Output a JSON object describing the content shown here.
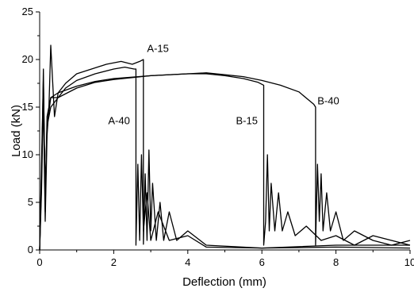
{
  "chart_data": {
    "type": "line",
    "title": "",
    "xlabel": "Deflection (mm)",
    "ylabel": "Load (kN)",
    "xlim": [
      0,
      10
    ],
    "ylim": [
      0,
      25
    ],
    "x_ticks": [
      0,
      2,
      4,
      6,
      8,
      10
    ],
    "y_ticks": [
      0,
      5,
      10,
      15,
      20,
      25
    ],
    "grid": false,
    "legend": "none",
    "line_color": "#000000",
    "series": [
      {
        "points": [
          [
            0,
            0
          ],
          [
            0.05,
            6
          ],
          [
            0.1,
            16
          ],
          [
            0.15,
            3
          ],
          [
            0.2,
            12
          ],
          [
            0.25,
            15
          ],
          [
            0.3,
            21.5
          ],
          [
            0.4,
            14
          ],
          [
            0.5,
            16.5
          ],
          [
            0.7,
            17.5
          ],
          [
            1,
            18.5
          ],
          [
            1.4,
            19
          ],
          [
            1.8,
            19.5
          ],
          [
            2.2,
            19.8
          ],
          [
            2.5,
            19.5
          ],
          [
            2.7,
            19.8
          ],
          [
            2.8,
            20
          ],
          [
            2.8,
            0.6
          ],
          [
            2.85,
            8
          ],
          [
            2.9,
            1
          ],
          [
            2.95,
            10.5
          ],
          [
            3.0,
            2
          ],
          [
            3.05,
            7
          ],
          [
            3.15,
            1
          ],
          [
            3.25,
            5
          ],
          [
            3.35,
            1
          ],
          [
            3.5,
            4
          ],
          [
            3.7,
            1
          ],
          [
            4.0,
            2
          ],
          [
            4.5,
            0.5
          ],
          [
            6,
            0.2
          ],
          [
            8,
            0.5
          ],
          [
            10,
            0.5
          ]
        ]
      },
      {
        "points": [
          [
            0,
            0
          ],
          [
            0.05,
            8
          ],
          [
            0.1,
            17
          ],
          [
            0.15,
            5
          ],
          [
            0.2,
            13
          ],
          [
            0.3,
            16
          ],
          [
            0.5,
            16
          ],
          [
            0.7,
            17
          ],
          [
            1,
            17.8
          ],
          [
            1.5,
            18.5
          ],
          [
            2,
            19
          ],
          [
            2.3,
            19.2
          ],
          [
            2.55,
            19
          ],
          [
            2.6,
            19
          ],
          [
            2.6,
            0.5
          ],
          [
            2.65,
            9
          ],
          [
            2.7,
            1
          ],
          [
            2.75,
            10
          ],
          [
            2.8,
            2
          ],
          [
            2.9,
            6
          ],
          [
            3.0,
            1
          ],
          [
            3.2,
            4
          ],
          [
            3.5,
            1
          ],
          [
            4,
            1.5
          ],
          [
            4.5,
            0.3
          ],
          [
            6,
            0.2
          ],
          [
            8,
            0.3
          ],
          [
            10,
            0.2
          ]
        ]
      },
      {
        "points": [
          [
            0,
            0
          ],
          [
            0.05,
            9
          ],
          [
            0.1,
            18
          ],
          [
            0.15,
            6
          ],
          [
            0.2,
            13
          ],
          [
            0.3,
            15
          ],
          [
            0.5,
            16
          ],
          [
            1,
            17
          ],
          [
            1.5,
            17.6
          ],
          [
            2,
            17.9
          ],
          [
            3,
            18.3
          ],
          [
            4,
            18.5
          ],
          [
            4.5,
            18.5
          ],
          [
            5,
            18.3
          ],
          [
            5.5,
            18
          ],
          [
            5.9,
            17.6
          ],
          [
            6.05,
            17.3
          ],
          [
            6.05,
            0.5
          ],
          [
            6.1,
            3
          ],
          [
            6.15,
            10
          ],
          [
            6.2,
            2
          ],
          [
            6.25,
            7
          ],
          [
            6.35,
            2
          ],
          [
            6.45,
            6
          ],
          [
            6.55,
            2
          ],
          [
            6.7,
            4
          ],
          [
            6.9,
            1.5
          ],
          [
            7.2,
            2.5
          ],
          [
            7.6,
            1
          ],
          [
            8,
            1.5
          ],
          [
            8.5,
            0.5
          ],
          [
            9,
            1.5
          ],
          [
            10,
            0.5
          ]
        ]
      },
      {
        "points": [
          [
            0,
            0
          ],
          [
            0.05,
            7
          ],
          [
            0.1,
            19
          ],
          [
            0.15,
            4
          ],
          [
            0.2,
            14
          ],
          [
            0.3,
            16
          ],
          [
            0.5,
            16.5
          ],
          [
            1,
            17.2
          ],
          [
            1.5,
            17.7
          ],
          [
            2,
            18
          ],
          [
            3,
            18.3
          ],
          [
            4,
            18.5
          ],
          [
            4.5,
            18.6
          ],
          [
            5,
            18.4
          ],
          [
            5.5,
            18.2
          ],
          [
            6,
            17.8
          ],
          [
            6.5,
            17.3
          ],
          [
            7,
            16.6
          ],
          [
            7.4,
            15.3
          ],
          [
            7.45,
            15
          ],
          [
            7.45,
            0.5
          ],
          [
            7.5,
            9
          ],
          [
            7.55,
            3
          ],
          [
            7.6,
            8
          ],
          [
            7.65,
            2
          ],
          [
            7.75,
            6
          ],
          [
            7.85,
            2
          ],
          [
            8,
            4
          ],
          [
            8.2,
            1
          ],
          [
            8.5,
            2
          ],
          [
            9,
            1
          ],
          [
            9.5,
            0.5
          ],
          [
            10,
            1
          ]
        ]
      }
    ],
    "annotations": [
      {
        "text": "A-15",
        "x": 2.9,
        "y": 20.8
      },
      {
        "text": "A-40",
        "x": 1.85,
        "y": 13.2
      },
      {
        "text": "B-15",
        "x": 5.3,
        "y": 13.2
      },
      {
        "text": "B-40",
        "x": 7.5,
        "y": 15.3
      }
    ]
  }
}
